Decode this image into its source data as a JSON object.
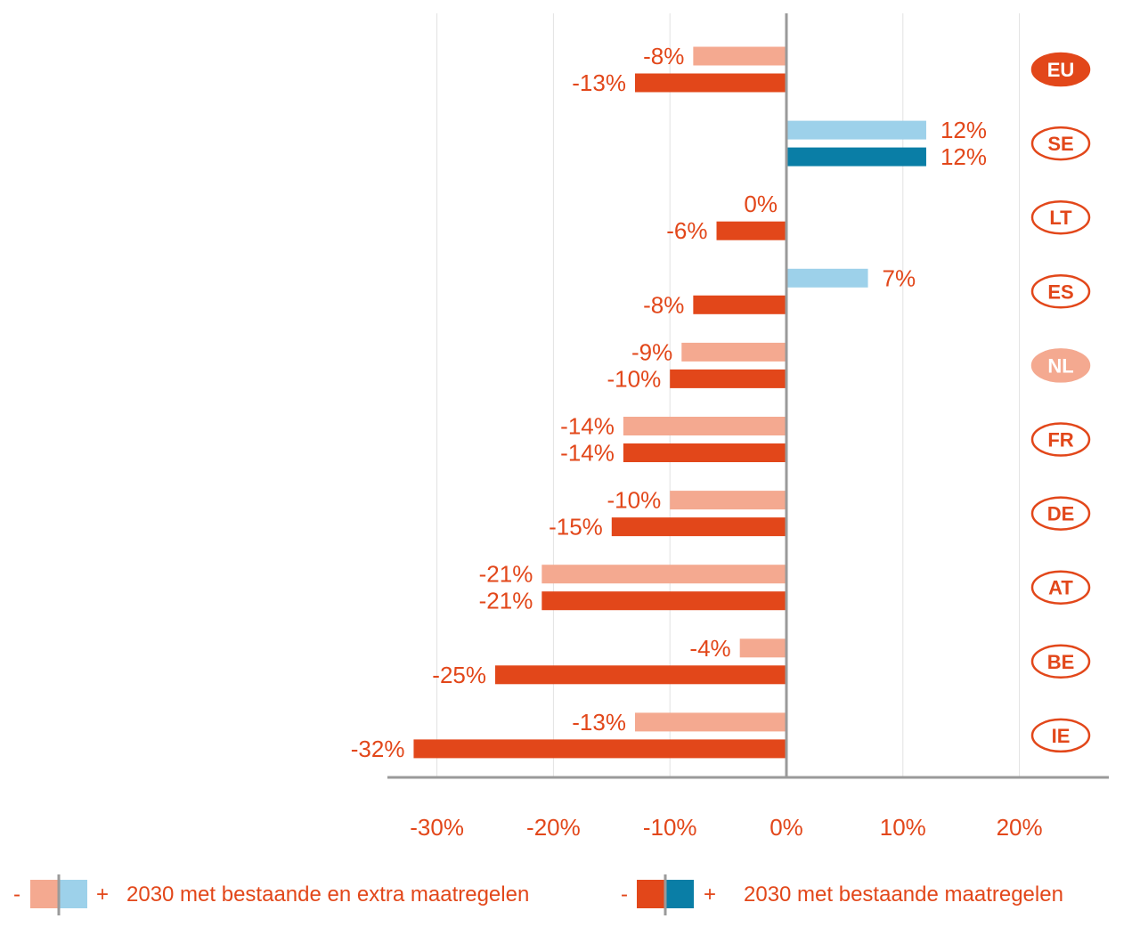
{
  "colors": {
    "extra_neg": "#F4A990",
    "extra_pos": "#9DD1EA",
    "existing_neg": "#E2471A",
    "existing_pos": "#0A7EA6",
    "text": "#E2471A",
    "axis": "#9a9a9a",
    "grid": "#e2e2e2",
    "badge_nl": "#F4A990",
    "badge_eu": "#E2471A"
  },
  "chart_data": {
    "type": "bar",
    "orientation": "horizontal",
    "categories": [
      "EU",
      "SE",
      "LT",
      "ES",
      "NL",
      "FR",
      "DE",
      "AT",
      "BE",
      "IE"
    ],
    "highlight": {
      "EU": "filled-dark",
      "NL": "filled-light"
    },
    "series": [
      {
        "name": "2030 met bestaande en extra maatregelen",
        "values": [
          -8,
          12,
          0,
          7,
          -9,
          -14,
          -10,
          -21,
          -4,
          -13
        ],
        "labels": [
          "-8%",
          "12%",
          "0%",
          "7%",
          "-9%",
          "-14%",
          "-10%",
          "-21%",
          "-4%",
          "-13%"
        ]
      },
      {
        "name": "2030 met bestaande maatregelen",
        "values": [
          -13,
          12,
          -6,
          -8,
          -10,
          -14,
          -15,
          -21,
          -25,
          -32
        ],
        "labels": [
          "-13%",
          "12%",
          "-6%",
          "-8%",
          "-10%",
          "-14%",
          "-15%",
          "-21%",
          "-25%",
          "-32%"
        ]
      }
    ],
    "xlim": [
      -34,
      27.5
    ],
    "xticks": [
      -30,
      -20,
      -10,
      0,
      10,
      20
    ],
    "xtick_labels": [
      "-30%",
      "-20%",
      "-10%",
      "0%",
      "10%",
      "20%"
    ],
    "grid": true,
    "legend_position": "bottom"
  },
  "legend": {
    "minus": "-",
    "plus": "+",
    "items": [
      {
        "label": "2030 met bestaande en extra maatregelen"
      },
      {
        "label": "2030 met bestaande maatregelen"
      }
    ]
  }
}
